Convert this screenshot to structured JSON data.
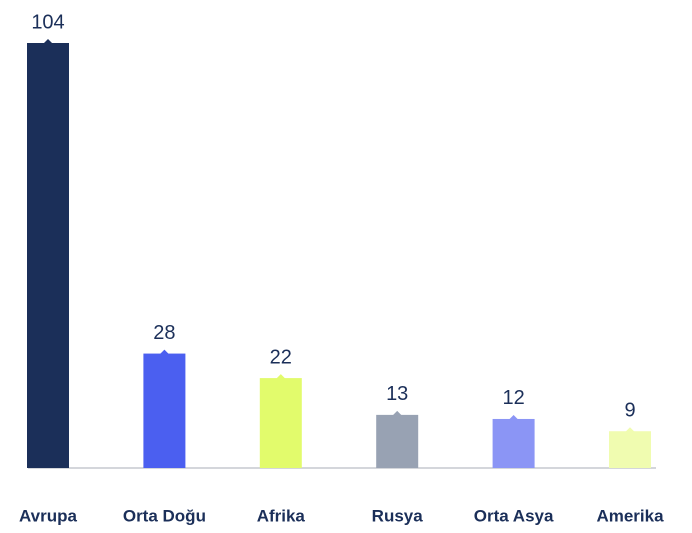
{
  "chart_data": {
    "type": "bar",
    "categories": [
      "Avrupa",
      "Orta Doğu",
      "Afrika",
      "Rusya",
      "Orta Asya",
      "Amerika"
    ],
    "values": [
      104,
      28,
      22,
      13,
      12,
      9
    ],
    "colors": [
      "#1b2f59",
      "#4b5ff0",
      "#e2fb6c",
      "#98a2b3",
      "#8b95f5",
      "#f0fcb0"
    ],
    "ylim": [
      0,
      104
    ]
  }
}
